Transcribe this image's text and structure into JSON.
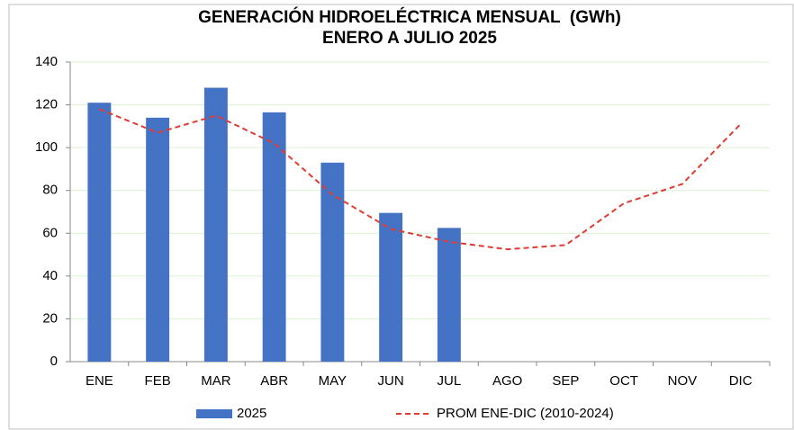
{
  "chart_data": {
    "type": "bar",
    "title": "GENERACIÓN HIDROELÉCTRICA MENSUAL  (GWh)",
    "subtitle": "ENERO A JULIO 2025",
    "categories": [
      "ENE",
      "FEB",
      "MAR",
      "ABR",
      "MAY",
      "JUN",
      "JUL",
      "AGO",
      "SEP",
      "OCT",
      "NOV",
      "DIC"
    ],
    "series": [
      {
        "name": "2025",
        "type": "bar",
        "color": "#4472c4",
        "values": [
          121,
          114,
          128,
          116.5,
          93,
          69.5,
          62.5,
          null,
          null,
          null,
          null,
          null
        ]
      },
      {
        "name": "PROM ENE-DIC (2010-2024)",
        "type": "line",
        "color": "#e03c31",
        "dashed": true,
        "values": [
          118,
          107,
          115,
          102,
          78,
          62,
          56,
          52.5,
          54.5,
          74,
          83,
          111
        ]
      }
    ],
    "ylim": [
      0,
      140
    ],
    "yticks": [
      0,
      20,
      40,
      60,
      80,
      100,
      120,
      140
    ],
    "grid": true,
    "legend": "bottom"
  }
}
